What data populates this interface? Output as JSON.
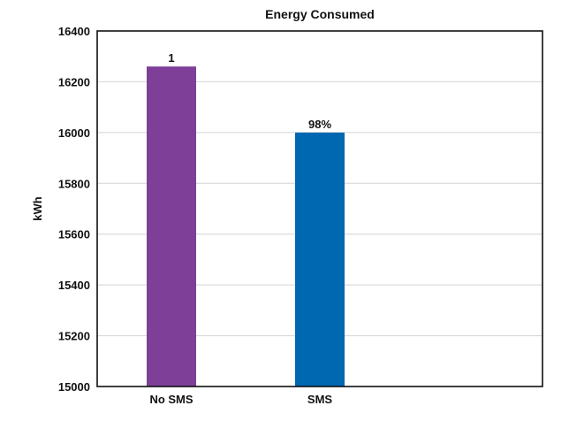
{
  "chart_data": {
    "type": "bar",
    "title": "Energy Consumed",
    "xlabel": "",
    "ylabel": "kWh",
    "categories": [
      "No SMS",
      "SMS"
    ],
    "values": [
      16260,
      16000
    ],
    "data_labels": [
      "1",
      "98%"
    ],
    "bar_colors": [
      "#7d3f98",
      "#0067b1"
    ],
    "ylim": [
      15000,
      16400
    ],
    "yticks": [
      15000,
      15200,
      15400,
      15600,
      15800,
      16000,
      16200,
      16400
    ],
    "ytick_labels": [
      "15000",
      "15200",
      "15400",
      "15600",
      "15800",
      "16000",
      "16200",
      "16400"
    ],
    "category_slots": 3,
    "grid": true
  }
}
